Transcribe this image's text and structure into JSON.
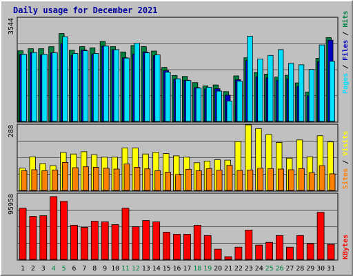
{
  "title": "Daily usage for December 2021",
  "colors": {
    "hits": "#008040",
    "files": "#0000c0",
    "pages": "#00e0ff",
    "visits": "#ffff00",
    "sites": "#ff8000",
    "kbytes": "#ff0000",
    "weekend_label": "#008040",
    "weekday_label": "#000000"
  },
  "chart_data": [
    {
      "type": "bar",
      "panel": "top",
      "ymax_label": "3544",
      "ylim": [
        0,
        3544
      ],
      "legend": [
        {
          "text": "Hits",
          "color": "#008040"
        },
        {
          "text": "Files",
          "color": "#0000c0"
        },
        {
          "text": "Pages",
          "color": "#00e0ff"
        }
      ],
      "categories": [
        "1",
        "2",
        "3",
        "4",
        "5",
        "6",
        "7",
        "8",
        "9",
        "10",
        "11",
        "12",
        "13",
        "14",
        "15",
        "16",
        "17",
        "18",
        "19",
        "20",
        "21",
        "22",
        "23",
        "24",
        "25",
        "26",
        "27",
        "28",
        "29",
        "30",
        "31"
      ],
      "weekend": [
        4,
        5,
        11,
        12,
        18,
        19,
        25,
        26
      ],
      "series": [
        {
          "name": "Hits",
          "values": [
            2420,
            2490,
            2490,
            2560,
            3010,
            2440,
            2560,
            2520,
            2740,
            2560,
            2380,
            2600,
            2560,
            2410,
            1850,
            1570,
            1540,
            1330,
            1220,
            1250,
            1020,
            1560,
            2180,
            1680,
            1620,
            1520,
            1580,
            1320,
            1010,
            2160,
            2870
          ]
        },
        {
          "name": "Files",
          "values": [
            2300,
            2360,
            2280,
            2350,
            2670,
            2260,
            2450,
            2300,
            2580,
            2460,
            2180,
            2310,
            2380,
            2250,
            1740,
            1450,
            1410,
            1160,
            1110,
            1120,
            900,
            1430,
            2090,
            1530,
            1490,
            1410,
            1460,
            1200,
            880,
            2050,
            2780
          ]
        },
        {
          "name": "Pages",
          "values": [
            2300,
            2360,
            2300,
            2350,
            2900,
            2330,
            2420,
            2330,
            2580,
            2460,
            2170,
            2680,
            2350,
            2280,
            1690,
            1460,
            1400,
            1140,
            1170,
            1040,
            700,
            1380,
            2920,
            2140,
            2260,
            2460,
            1990,
            1940,
            1780,
            2620,
            2060
          ]
        }
      ]
    },
    {
      "type": "bar",
      "panel": "middle",
      "ymax_label": "288",
      "ylim": [
        0,
        288
      ],
      "legend": [
        {
          "text": "Visits",
          "color": "#ffff00"
        },
        {
          "text": "Sites",
          "color": "#ff8000"
        }
      ],
      "categories": [
        "1",
        "2",
        "3",
        "4",
        "5",
        "6",
        "7",
        "8",
        "9",
        "10",
        "11",
        "12",
        "13",
        "14",
        "15",
        "16",
        "17",
        "18",
        "19",
        "20",
        "21",
        "22",
        "23",
        "24",
        "25",
        "26",
        "27",
        "28",
        "29",
        "30",
        "31"
      ],
      "series": [
        {
          "name": "Visits",
          "values": [
            98,
            148,
            118,
            109,
            167,
            160,
            170,
            157,
            146,
            146,
            187,
            187,
            160,
            168,
            162,
            152,
            146,
            122,
            129,
            135,
            133,
            215,
            288,
            272,
            246,
            211,
            142,
            222,
            148,
            240,
            213
          ]
        },
        {
          "name": "Sites",
          "values": [
            87,
            91,
            87,
            90,
            123,
            100,
            104,
            102,
            98,
            94,
            116,
            102,
            95,
            87,
            80,
            70,
            93,
            87,
            96,
            89,
            110,
            88,
            90,
            98,
            96,
            94,
            91,
            96,
            78,
            109,
            73
          ]
        }
      ]
    },
    {
      "type": "bar",
      "panel": "bottom",
      "ymax_label": "95958",
      "ylim": [
        0,
        95958
      ],
      "legend": [
        {
          "text": "KBytes",
          "color": "#ff0000"
        }
      ],
      "categories": [
        "1",
        "2",
        "3",
        "4",
        "5",
        "6",
        "7",
        "8",
        "9",
        "10",
        "11",
        "12",
        "13",
        "14",
        "15",
        "16",
        "17",
        "18",
        "19",
        "20",
        "21",
        "22",
        "23",
        "24",
        "25",
        "26",
        "27",
        "28",
        "29",
        "30",
        "31"
      ],
      "series": [
        {
          "name": "KBytes",
          "values": [
            75000,
            63000,
            64000,
            92000,
            85000,
            50000,
            47000,
            56000,
            55000,
            51000,
            75000,
            48000,
            57000,
            55000,
            40000,
            37000,
            37000,
            50000,
            35000,
            15000,
            4000,
            18000,
            43000,
            21000,
            25000,
            35000,
            18000,
            35000,
            23000,
            69000,
            22000
          ]
        }
      ]
    }
  ]
}
